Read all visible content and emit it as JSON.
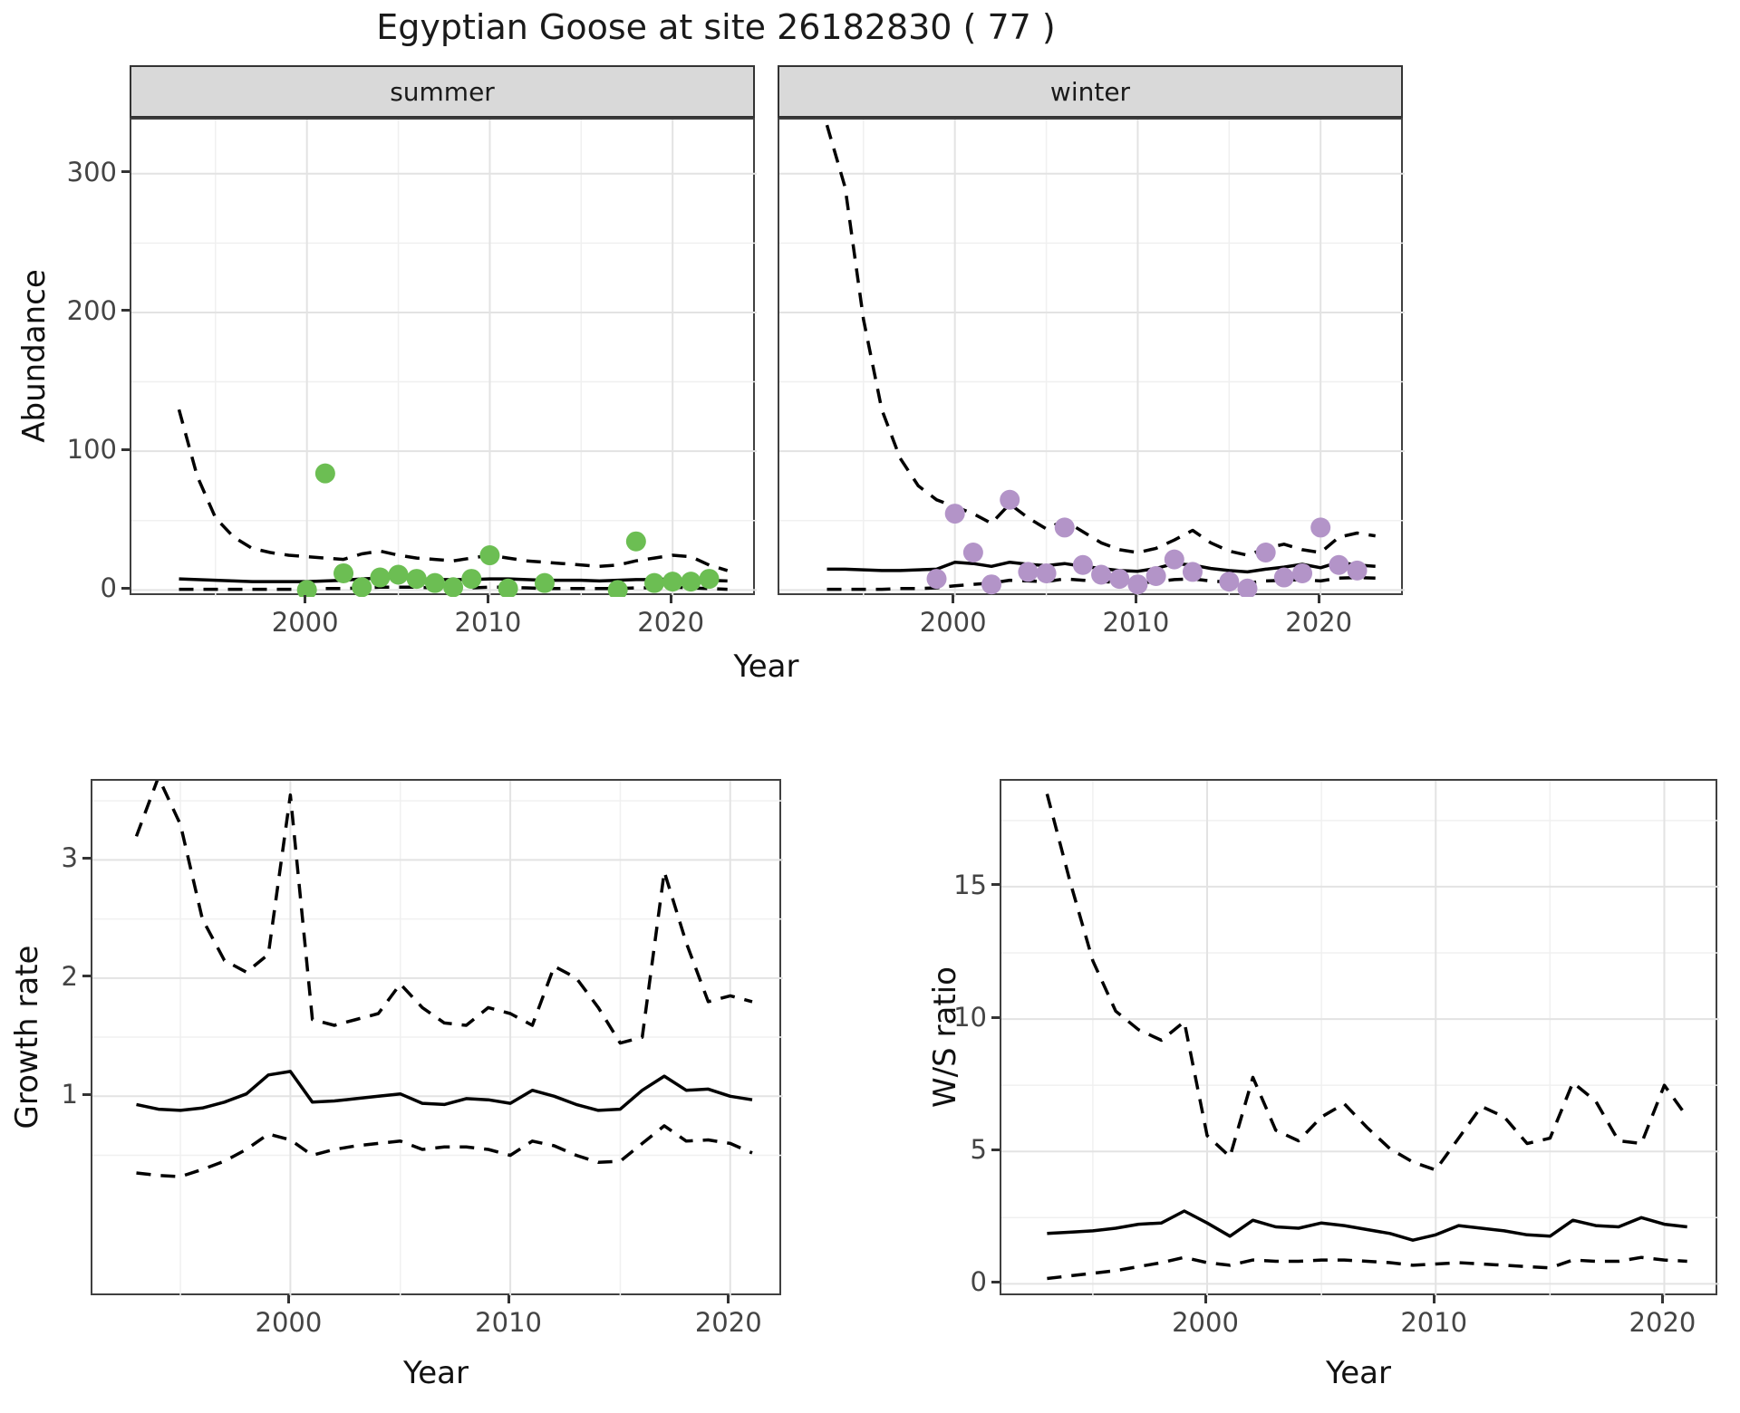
{
  "labels": {
    "title": "Egyptian Goose at site 26182830 ( 77 )",
    "abundance": "Abundance",
    "year": "Year",
    "growth_rate": "Growth rate",
    "ws_ratio": "W/S ratio",
    "summer": "summer",
    "winter": "winter"
  },
  "colors": {
    "summer_point": "#6CBE53",
    "winter_point": "#B394C8",
    "line": "#000000",
    "grid_major": "#e3e3e3",
    "grid_minor": "#f0f0f0",
    "strip_bg": "#d9d9d9",
    "panel_border": "#404040",
    "axis_text": "#444444"
  },
  "chart_data": [
    {
      "id": "abundance_summer",
      "type": "line",
      "facet": "summer",
      "xlabel": "Year",
      "ylabel": "Abundance",
      "xlim": [
        1990.4,
        2024.6
      ],
      "ylim": [
        -5,
        339
      ],
      "x_ticks": [
        2000,
        2010,
        2020
      ],
      "x_minor": [
        1995,
        2005,
        2015
      ],
      "y_ticks": [
        0,
        100,
        200,
        300
      ],
      "y_minor": [
        50,
        150,
        250
      ],
      "grid": true,
      "legend": "none",
      "years": [
        1993,
        1994,
        1995,
        1996,
        1997,
        1998,
        1999,
        2000,
        2001,
        2002,
        2003,
        2004,
        2005,
        2006,
        2007,
        2008,
        2009,
        2010,
        2011,
        2012,
        2013,
        2014,
        2015,
        2016,
        2017,
        2018,
        2019,
        2020,
        2021,
        2022,
        2023
      ],
      "series": [
        {
          "name": "model_fit",
          "style": "solid",
          "values": [
            8,
            7.5,
            7,
            6.5,
            6,
            6,
            6,
            6,
            6.5,
            7,
            8,
            8.5,
            8.5,
            8,
            7.5,
            7.5,
            7.5,
            8,
            8,
            7.5,
            7,
            7,
            7,
            6.5,
            7,
            7.5,
            7.5,
            8,
            7.5,
            7,
            6.5
          ]
        },
        {
          "name": "upper_ci",
          "style": "dashed",
          "values": [
            130,
            82,
            52,
            38,
            30,
            27,
            25,
            24,
            23,
            22,
            26,
            28,
            25,
            23,
            22,
            21,
            23,
            25,
            23,
            21,
            20,
            19,
            18,
            17,
            18,
            21,
            23,
            25,
            24,
            18,
            14
          ]
        },
        {
          "name": "lower_ci",
          "style": "dashed",
          "values": [
            0.5,
            0.5,
            0.5,
            0.5,
            0.5,
            0.5,
            0.5,
            0.5,
            1,
            1,
            1.5,
            2,
            2,
            2,
            1.5,
            1.5,
            1.5,
            2,
            2,
            1.5,
            1,
            1,
            1,
            1,
            1,
            1.5,
            1.5,
            2,
            1.5,
            1,
            0.5
          ]
        }
      ],
      "points": {
        "name": "observed_counts_summer",
        "color": "#6CBE53",
        "data": [
          [
            2000,
            0
          ],
          [
            2001,
            84
          ],
          [
            2002,
            12
          ],
          [
            2003,
            2
          ],
          [
            2004,
            9
          ],
          [
            2005,
            11
          ],
          [
            2006,
            8
          ],
          [
            2007,
            5
          ],
          [
            2008,
            2
          ],
          [
            2009,
            8
          ],
          [
            2010,
            25
          ],
          [
            2011,
            1
          ],
          [
            2013,
            5
          ],
          [
            2017,
            0
          ],
          [
            2018,
            35
          ],
          [
            2019,
            5
          ],
          [
            2020,
            6
          ],
          [
            2021,
            6
          ],
          [
            2022,
            8
          ]
        ]
      }
    },
    {
      "id": "abundance_winter",
      "type": "line",
      "facet": "winter",
      "xlabel": "Year",
      "ylabel": "Abundance",
      "xlim": [
        1990.4,
        2024.6
      ],
      "ylim": [
        -5,
        339
      ],
      "x_ticks": [
        2000,
        2010,
        2020
      ],
      "x_minor": [
        1995,
        2005,
        2015
      ],
      "y_ticks": [
        0,
        100,
        200,
        300
      ],
      "y_minor": [
        50,
        150,
        250
      ],
      "grid": true,
      "legend": "none",
      "years": [
        1993,
        1994,
        1995,
        1996,
        1997,
        1998,
        1999,
        2000,
        2001,
        2002,
        2003,
        2004,
        2005,
        2006,
        2007,
        2008,
        2009,
        2010,
        2011,
        2012,
        2013,
        2014,
        2015,
        2016,
        2017,
        2018,
        2019,
        2020,
        2021,
        2022,
        2023
      ],
      "series": [
        {
          "name": "model_fit",
          "style": "solid",
          "values": [
            15,
            15,
            14.5,
            14,
            14,
            14.5,
            15,
            20,
            19,
            17,
            20,
            18.5,
            17.5,
            19,
            17,
            15.5,
            14,
            13.5,
            15.5,
            19,
            18,
            15.5,
            14,
            13,
            15,
            16.5,
            18.5,
            16,
            20,
            18,
            17
          ]
        },
        {
          "name": "upper_ci",
          "style": "dashed",
          "values": [
            335,
            290,
            195,
            130,
            95,
            75,
            65,
            60,
            55,
            48,
            62,
            52,
            44,
            50,
            42,
            34,
            29,
            27,
            30,
            36,
            43,
            34,
            28,
            25,
            30,
            33,
            29,
            27,
            38,
            41,
            39
          ]
        },
        {
          "name": "lower_ci",
          "style": "dashed",
          "values": [
            0.5,
            0.5,
            0.5,
            0.5,
            1,
            1,
            1.5,
            3,
            4,
            5,
            7,
            6.5,
            6,
            8,
            7,
            6,
            5.5,
            5,
            6,
            7.5,
            8,
            6.5,
            5.5,
            5,
            6.5,
            7,
            7.5,
            6.5,
            8.5,
            9,
            8.5
          ]
        }
      ],
      "points": {
        "name": "observed_counts_winter",
        "color": "#B394C8",
        "data": [
          [
            1999,
            8
          ],
          [
            2000,
            55
          ],
          [
            2001,
            27
          ],
          [
            2002,
            4
          ],
          [
            2003,
            65
          ],
          [
            2004,
            13
          ],
          [
            2005,
            12
          ],
          [
            2006,
            45
          ],
          [
            2007,
            18
          ],
          [
            2008,
            11
          ],
          [
            2009,
            8
          ],
          [
            2010,
            4
          ],
          [
            2011,
            10
          ],
          [
            2012,
            22
          ],
          [
            2013,
            13
          ],
          [
            2015,
            6
          ],
          [
            2016,
            1
          ],
          [
            2017,
            27
          ],
          [
            2018,
            9
          ],
          [
            2019,
            12
          ],
          [
            2020,
            45
          ],
          [
            2021,
            18
          ],
          [
            2022,
            14
          ]
        ]
      }
    },
    {
      "id": "growth_rate",
      "type": "line",
      "xlabel": "Year",
      "ylabel": "Growth rate",
      "xlim": [
        1991,
        2022.4
      ],
      "ylim": [
        -0.7,
        3.67
      ],
      "x_ticks": [
        2000,
        2010,
        2020
      ],
      "x_minor": [
        1995,
        2005,
        2015
      ],
      "y_ticks": [
        1,
        2,
        3
      ],
      "y_minor": [
        0.5,
        1.5,
        2.5,
        3.5
      ],
      "grid": true,
      "legend": "none",
      "years": [
        1993,
        1994,
        1995,
        1996,
        1997,
        1998,
        1999,
        2000,
        2001,
        2002,
        2003,
        2004,
        2005,
        2006,
        2007,
        2008,
        2009,
        2010,
        2011,
        2012,
        2013,
        2014,
        2015,
        2016,
        2017,
        2018,
        2019,
        2020,
        2021
      ],
      "series": [
        {
          "name": "growth_rate_fit",
          "style": "solid",
          "values": [
            0.93,
            0.89,
            0.88,
            0.9,
            0.95,
            1.02,
            1.18,
            1.21,
            0.95,
            0.96,
            0.98,
            1.0,
            1.02,
            0.94,
            0.93,
            0.98,
            0.97,
            0.94,
            1.05,
            1.0,
            0.93,
            0.88,
            0.89,
            1.05,
            1.17,
            1.05,
            1.06,
            1.0,
            0.97
          ]
        },
        {
          "name": "upper_ci",
          "style": "dashed",
          "values": [
            3.2,
            3.7,
            3.3,
            2.5,
            2.15,
            2.05,
            2.2,
            3.55,
            1.65,
            1.6,
            1.65,
            1.7,
            1.95,
            1.75,
            1.62,
            1.6,
            1.75,
            1.7,
            1.6,
            2.1,
            2.0,
            1.75,
            1.45,
            1.5,
            2.9,
            2.3,
            1.8,
            1.85,
            1.8
          ]
        },
        {
          "name": "lower_ci",
          "style": "dashed",
          "values": [
            0.35,
            0.33,
            0.32,
            0.38,
            0.45,
            0.55,
            0.68,
            0.63,
            0.5,
            0.55,
            0.58,
            0.6,
            0.62,
            0.55,
            0.57,
            0.57,
            0.55,
            0.5,
            0.62,
            0.58,
            0.5,
            0.44,
            0.45,
            0.6,
            0.75,
            0.62,
            0.63,
            0.6,
            0.52
          ]
        }
      ],
      "points": null
    },
    {
      "id": "ws_ratio",
      "type": "line",
      "xlabel": "Year",
      "ylabel": "W/S ratio",
      "xlim": [
        1991,
        2022.4
      ],
      "ylim": [
        -0.5,
        19.0
      ],
      "x_ticks": [
        2000,
        2010,
        2020
      ],
      "x_minor": [
        1995,
        2005,
        2015
      ],
      "y_ticks": [
        0,
        5,
        10,
        15
      ],
      "y_minor": [
        2.5,
        7.5,
        12.5,
        17.5
      ],
      "grid": true,
      "legend": "none",
      "years": [
        1993,
        1994,
        1995,
        1996,
        1997,
        1998,
        1999,
        2000,
        2001,
        2002,
        2003,
        2004,
        2005,
        2006,
        2007,
        2008,
        2009,
        2010,
        2011,
        2012,
        2013,
        2014,
        2015,
        2016,
        2017,
        2018,
        2019,
        2020,
        2021
      ],
      "series": [
        {
          "name": "ws_ratio_fit",
          "style": "solid",
          "values": [
            1.9,
            1.95,
            2.0,
            2.1,
            2.25,
            2.3,
            2.75,
            2.3,
            1.8,
            2.4,
            2.15,
            2.1,
            2.3,
            2.2,
            2.05,
            1.9,
            1.65,
            1.85,
            2.2,
            2.1,
            2.0,
            1.85,
            1.8,
            2.4,
            2.2,
            2.15,
            2.5,
            2.25,
            2.15
          ]
        },
        {
          "name": "upper_ci",
          "style": "dashed",
          "values": [
            18.5,
            15.2,
            12.2,
            10.3,
            9.6,
            9.2,
            9.9,
            5.6,
            4.8,
            7.8,
            5.8,
            5.4,
            6.3,
            6.8,
            5.9,
            5.1,
            4.6,
            4.3,
            5.5,
            6.7,
            6.3,
            5.3,
            5.5,
            7.6,
            6.9,
            5.4,
            5.3,
            7.5,
            6.3
          ]
        },
        {
          "name": "lower_ci",
          "style": "dashed",
          "values": [
            0.2,
            0.3,
            0.4,
            0.5,
            0.65,
            0.8,
            1.0,
            0.8,
            0.7,
            0.9,
            0.85,
            0.85,
            0.9,
            0.9,
            0.85,
            0.8,
            0.7,
            0.75,
            0.8,
            0.75,
            0.7,
            0.65,
            0.6,
            0.9,
            0.85,
            0.85,
            1.0,
            0.9,
            0.85
          ]
        }
      ],
      "points": null
    }
  ]
}
